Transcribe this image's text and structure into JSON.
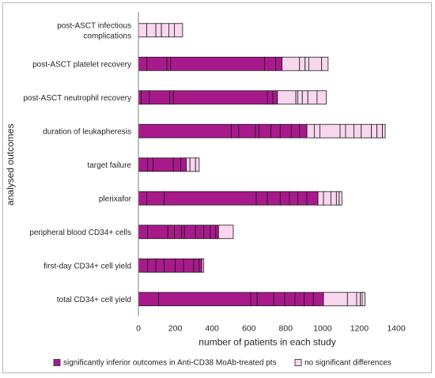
{
  "chart_data": {
    "type": "bar",
    "orientation": "horizontal",
    "stacked": true,
    "categories": [
      [
        "post-ASCT infectious",
        "complications"
      ],
      [
        "post-ASCT platelet recovery"
      ],
      [
        "post-ASCT neutrophil recovery"
      ],
      [
        "duration of leukapheresis"
      ],
      [
        "target failure"
      ],
      [
        "plerixafor"
      ],
      [
        "peripheral blood CD34+ cells"
      ],
      [
        "first-day CD34+ cell yield"
      ],
      [
        "total CD34+ cell yield"
      ]
    ],
    "xlabel": "number of patients in each study",
    "ylabel": "analysed outcomes",
    "xlim": [
      0,
      1400
    ],
    "xticks": [
      0,
      200,
      400,
      600,
      800,
      1000,
      1200,
      1400
    ],
    "grid": false,
    "legend_position": "bottom",
    "series": [
      {
        "name": "significantly inferior outcomes in Anti-CD38 MoAb-treated pts",
        "color": "#a8198c",
        "segments": [
          [],
          [
            45,
            110,
            20,
            510,
            60,
            35
          ],
          [
            15,
            45,
            110,
            20,
            510,
            30,
            25
          ],
          [
            505,
            40,
            90,
            20,
            65,
            50,
            60,
            45,
            40
          ],
          [
            50,
            30,
            110,
            40,
            30
          ],
          [
            45,
            95,
            500,
            60,
            70,
            50,
            45,
            50,
            60
          ],
          [
            50,
            110,
            35,
            40,
            15,
            60,
            45,
            35,
            30,
            15
          ],
          [
            50,
            45,
            45,
            60,
            45,
            55,
            30,
            15
          ],
          [
            110,
            500,
            35,
            90,
            60,
            55,
            50,
            50,
            55
          ]
        ]
      },
      {
        "name": "no significant differences",
        "color": "#f7d6ee",
        "segments": [
          [
            45,
            50,
            30,
            40,
            30,
            45
          ],
          [
            95,
            30,
            20,
            70,
            35
          ],
          [
            100,
            10,
            25,
            30,
            50,
            50
          ],
          [
            40,
            30,
            110,
            30,
            45,
            40,
            55,
            30,
            30,
            15
          ],
          [
            20,
            30,
            20
          ],
          [
            30,
            40,
            30,
            15,
            15
          ],
          [
            80
          ],
          [
            10
          ],
          [
            130,
            50,
            20,
            10,
            15
          ]
        ]
      }
    ]
  }
}
